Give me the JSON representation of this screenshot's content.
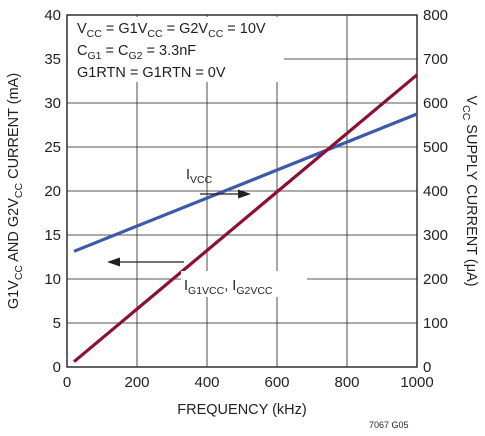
{
  "chart_data": {
    "type": "line",
    "x": [
      20,
      1000
    ],
    "xlabel": "FREQUENCY (kHz)",
    "xlim": [
      0,
      1000
    ],
    "xticks": [
      "0",
      "200",
      "400",
      "600",
      "800",
      "1000"
    ],
    "y_left": {
      "label_parts": [
        "G1V",
        "CC",
        " AND G2V",
        "CC",
        " CURRENT (mA)"
      ],
      "ylim": [
        0,
        40
      ],
      "ticks": [
        "0",
        "5",
        "10",
        "15",
        "20",
        "25",
        "30",
        "35",
        "40"
      ]
    },
    "y_right": {
      "label_parts": [
        "V",
        "CC",
        " SUPPLY CURRENT (μA)"
      ],
      "ylim": [
        0,
        800
      ],
      "ticks": [
        "0",
        "100",
        "200",
        "300",
        "400",
        "500",
        "600",
        "700",
        "800"
      ]
    },
    "grid": true,
    "series": [
      {
        "name_parts": [
          "I",
          "VCC"
        ],
        "axis": "right",
        "color": "#3a5ba9",
        "x": [
          20,
          1000
        ],
        "values": [
          263,
          575
        ]
      },
      {
        "name_parts": [
          "I",
          "G1VCC",
          ", I",
          "G2VCC"
        ],
        "axis": "left",
        "color": "#8c1035",
        "x": [
          20,
          1000
        ],
        "values": [
          0.6,
          33.2
        ]
      }
    ],
    "conditions": [
      {
        "parts": [
          "V",
          "CC",
          " = G1V",
          "CC",
          " = G2V",
          "CC",
          " = 10V"
        ]
      },
      {
        "parts": [
          "C",
          "G1",
          " = C",
          "G2",
          " = 3.3nF"
        ]
      },
      {
        "parts": [
          "G1RTN = G1RTN = 0V"
        ]
      }
    ],
    "figure_code": "7067 G05"
  }
}
